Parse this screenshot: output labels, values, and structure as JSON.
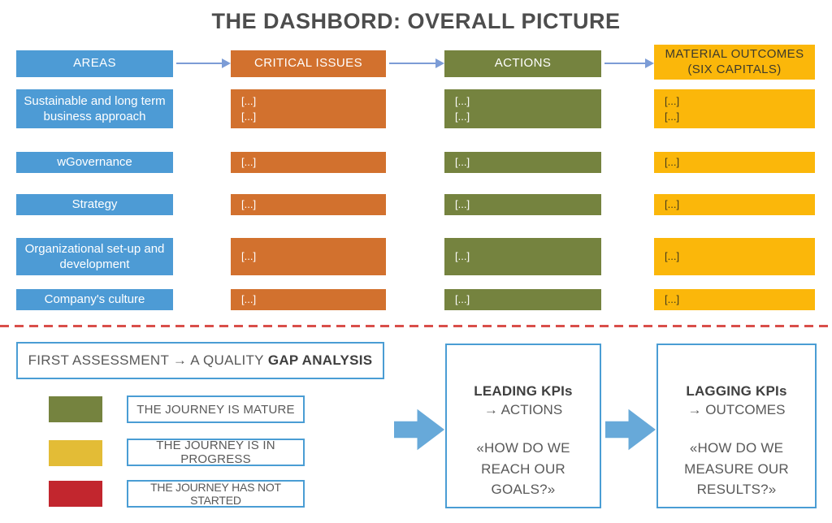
{
  "title": "THE DASHBORD: OVERALL PICTURE",
  "flow": {
    "headers": [
      {
        "label": "AREAS"
      },
      {
        "label": "CRITICAL ISSUES"
      },
      {
        "label": "ACTIONS"
      },
      {
        "label": "MATERIAL OUTCOMES\n(SIX CAPITALS)"
      }
    ],
    "rows": [
      {
        "area": "Sustainable and long term business approach",
        "critical_issues": "[...]\n[...]",
        "actions": "[...]\n[...]",
        "outcomes": "[...]\n[...]"
      },
      {
        "area": "wGovernance",
        "critical_issues": "[...]",
        "actions": "[...]",
        "outcomes": "[...]"
      },
      {
        "area": "Strategy",
        "critical_issues": "[...]",
        "actions": "[...]",
        "outcomes": "[...]"
      },
      {
        "area": "Organizational set-up and development",
        "critical_issues": "[...]",
        "actions": "[...]",
        "outcomes": "[...]"
      },
      {
        "area": "Company's culture",
        "critical_issues": "[...]",
        "actions": "[...]",
        "outcomes": "[...]"
      }
    ]
  },
  "assessment": {
    "text": "FIRST ASSESSMENT → A QUALITY",
    "bold": "GAP ANALYSIS"
  },
  "legend": {
    "items": [
      {
        "label": "THE JOURNEY IS MATURE",
        "color": "#75833f"
      },
      {
        "label": "THE JOURNEY IS IN PROGRESS",
        "color": "#e3bc36"
      },
      {
        "label": "THE JOURNEY HAS NOT STARTED",
        "color": "#c2262e"
      }
    ]
  },
  "kpi_boxes": [
    {
      "title": "LEADING KPIs",
      "subtitle": "→ ACTIONS",
      "question": "«HOW DO WE REACH OUR GOALS?»"
    },
    {
      "title": "LAGGING KPIs",
      "subtitle": "→ OUTCOMES",
      "question": "«HOW DO WE MEASURE OUR RESULTS?»"
    }
  ],
  "colors": {
    "area_blue": "#4d9bd5",
    "critical_orange": "#d2712e",
    "actions_olive": "#75833f",
    "outcomes_gold": "#fbb70a",
    "legend_yellow": "#e3bc36",
    "legend_red": "#c2262e",
    "border_blue": "#4a9dd4",
    "big_arrow_blue": "#67a9d9",
    "connector_blue": "#7c9cd6",
    "separator_red": "#d94f4a",
    "title_gray": "#4d4d4d",
    "text_gray": "#595959"
  }
}
